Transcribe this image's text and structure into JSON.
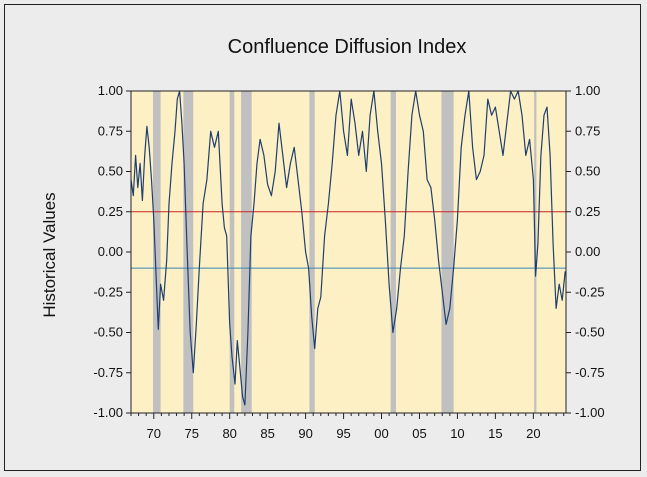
{
  "chart_data": {
    "type": "line",
    "title": "Confluence Diffusion Index",
    "ylabel": "Historical Values",
    "xlabel": "",
    "xlim": [
      1967,
      2024.3
    ],
    "ylim": [
      -1.0,
      1.0
    ],
    "x_ticks": [
      1970,
      1975,
      1980,
      1985,
      1990,
      1995,
      2000,
      2005,
      2010,
      2015,
      2020
    ],
    "x_tick_labels": [
      "70",
      "75",
      "80",
      "85",
      "90",
      "95",
      "00",
      "05",
      "10",
      "15",
      "20"
    ],
    "y_ticks": [
      1.0,
      0.75,
      0.5,
      0.25,
      0.0,
      -0.25,
      -0.5,
      -0.75,
      -1.0
    ],
    "y_tick_labels": [
      "1.00",
      "0.75",
      "0.50",
      "0.25",
      "0.00",
      "-0.25",
      "-0.50",
      "-0.75",
      "-1.00"
    ],
    "grid": false,
    "legend": "none",
    "plot_background": "#fdf0c4",
    "recession_color": "#c0c0c0",
    "reference_lines": [
      {
        "y": 0.25,
        "color": "#cc2222"
      },
      {
        "y": -0.1,
        "color": "#3a86b4"
      }
    ],
    "recessions": [
      [
        1969.9,
        1970.9
      ],
      [
        1973.9,
        1975.2
      ],
      [
        1980.0,
        1980.6
      ],
      [
        1981.5,
        1982.9
      ],
      [
        1990.5,
        1991.2
      ],
      [
        2001.2,
        2001.9
      ],
      [
        2007.9,
        2009.5
      ],
      [
        2020.1,
        2020.4
      ]
    ],
    "series": [
      {
        "color": "#1f3f6e",
        "x": [
          1967.0,
          1967.3,
          1967.6,
          1967.9,
          1968.2,
          1968.5,
          1968.8,
          1969.1,
          1969.4,
          1969.7,
          1970.0,
          1970.3,
          1970.6,
          1970.9,
          1971.3,
          1971.7,
          1972.0,
          1972.4,
          1972.8,
          1973.1,
          1973.4,
          1973.7,
          1974.0,
          1974.4,
          1974.8,
          1975.2,
          1975.6,
          1976.0,
          1976.5,
          1977.0,
          1977.5,
          1978.0,
          1978.5,
          1979.0,
          1979.3,
          1979.6,
          1980.0,
          1980.3,
          1980.7,
          1981.0,
          1981.3,
          1981.7,
          1982.0,
          1982.4,
          1982.8,
          1983.2,
          1983.6,
          1984.0,
          1984.5,
          1985.0,
          1985.5,
          1986.0,
          1986.5,
          1987.0,
          1987.5,
          1988.0,
          1988.5,
          1989.0,
          1989.5,
          1990.0,
          1990.4,
          1990.8,
          1991.2,
          1991.6,
          1992.0,
          1992.5,
          1993.0,
          1993.5,
          1994.0,
          1994.5,
          1995.0,
          1995.5,
          1996.0,
          1996.5,
          1997.0,
          1997.5,
          1998.0,
          1998.5,
          1999.0,
          1999.5,
          2000.0,
          2000.5,
          2001.0,
          2001.5,
          2002.0,
          2002.5,
          2003.0,
          2003.5,
          2004.0,
          2004.5,
          2005.0,
          2005.5,
          2006.0,
          2006.5,
          2007.0,
          2007.5,
          2008.0,
          2008.5,
          2009.0,
          2009.5,
          2010.0,
          2010.5,
          2011.0,
          2011.5,
          2012.0,
          2012.5,
          2013.0,
          2013.5,
          2014.0,
          2014.5,
          2015.0,
          2015.5,
          2016.0,
          2016.5,
          2017.0,
          2017.5,
          2018.0,
          2018.5,
          2019.0,
          2019.5,
          2020.0,
          2020.3,
          2020.6,
          2021.0,
          2021.4,
          2021.8,
          2022.2,
          2022.6,
          2023.0,
          2023.4,
          2023.8,
          2024.2
        ],
        "values": [
          0.45,
          0.35,
          0.6,
          0.4,
          0.55,
          0.32,
          0.6,
          0.78,
          0.65,
          0.45,
          0.2,
          -0.15,
          -0.48,
          -0.2,
          -0.3,
          -0.05,
          0.3,
          0.55,
          0.75,
          0.95,
          1.0,
          0.8,
          0.55,
          0.0,
          -0.5,
          -0.75,
          -0.45,
          -0.1,
          0.3,
          0.45,
          0.75,
          0.65,
          0.75,
          0.3,
          0.15,
          0.1,
          -0.45,
          -0.65,
          -0.82,
          -0.55,
          -0.7,
          -0.9,
          -0.95,
          -0.5,
          0.1,
          0.3,
          0.55,
          0.7,
          0.6,
          0.42,
          0.35,
          0.5,
          0.8,
          0.6,
          0.4,
          0.55,
          0.65,
          0.45,
          0.25,
          0.0,
          -0.1,
          -0.4,
          -0.6,
          -0.35,
          -0.28,
          0.1,
          0.3,
          0.55,
          0.85,
          1.0,
          0.75,
          0.6,
          0.95,
          0.8,
          0.6,
          0.75,
          0.5,
          0.85,
          1.0,
          0.75,
          0.55,
          0.2,
          -0.2,
          -0.5,
          -0.35,
          -0.1,
          0.1,
          0.5,
          0.85,
          1.0,
          0.85,
          0.75,
          0.45,
          0.4,
          0.2,
          -0.05,
          -0.25,
          -0.45,
          -0.35,
          -0.1,
          0.2,
          0.65,
          0.85,
          1.0,
          0.65,
          0.45,
          0.5,
          0.6,
          0.95,
          0.85,
          0.9,
          0.75,
          0.6,
          0.8,
          1.0,
          0.95,
          1.0,
          0.85,
          0.6,
          0.7,
          0.45,
          -0.15,
          0.05,
          0.6,
          0.85,
          0.9,
          0.6,
          0.05,
          -0.35,
          -0.2,
          -0.3,
          -0.12
        ]
      }
    ]
  }
}
